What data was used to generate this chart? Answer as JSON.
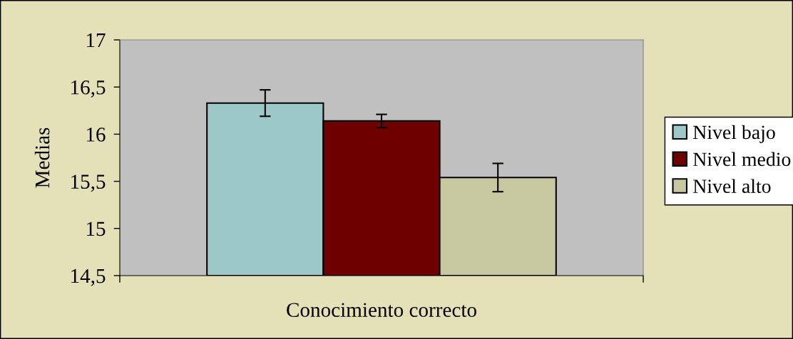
{
  "chart_data": {
    "type": "bar",
    "categories": [
      "Conocimiento correcto"
    ],
    "series": [
      {
        "name": "Nivel bajo",
        "color": "#9cc8c8",
        "values": [
          16.33
        ],
        "errors": [
          0.14
        ]
      },
      {
        "name": "Nivel medio",
        "color": "#6e0000",
        "values": [
          16.14
        ],
        "errors": [
          0.07
        ]
      },
      {
        "name": "Nivel alto",
        "color": "#c8c8a0",
        "values": [
          15.54
        ],
        "errors": [
          0.15
        ]
      }
    ],
    "ylabel": "Medias",
    "ylim": [
      14.5,
      17
    ],
    "yticks": [
      {
        "value": 14.5,
        "label": "14,5"
      },
      15,
      {
        "value": 15.5,
        "label": "15,5"
      },
      16,
      {
        "value": 16.5,
        "label": "16,5"
      },
      17
    ],
    "legend": "right",
    "grid": false
  }
}
